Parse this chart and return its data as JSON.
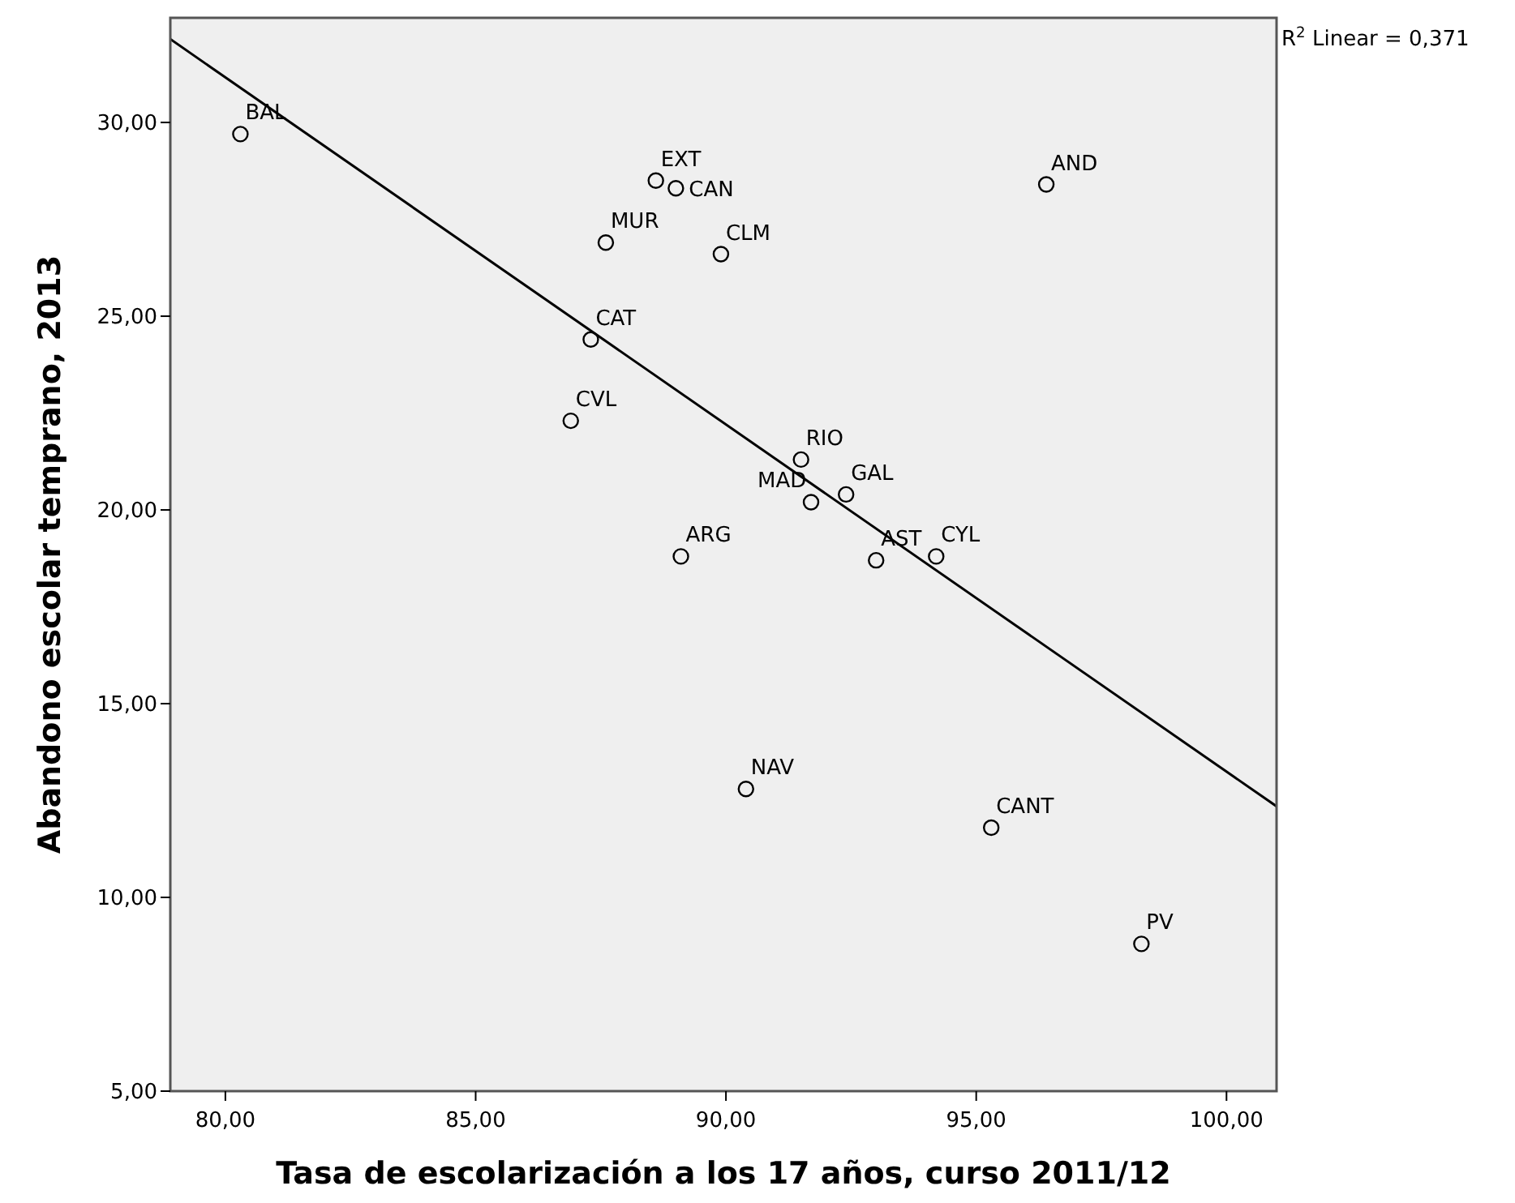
{
  "chart_data": {
    "type": "scatter",
    "xlabel": "Tasa de escolarización a los 17 años, curso 2011/12",
    "ylabel": "Abandono escolar temprano, 2013",
    "xlim": [
      78.9,
      101.0
    ],
    "ylim": [
      5,
      32.7
    ],
    "xticks": [
      {
        "value": 80,
        "label": "80,00"
      },
      {
        "value": 85,
        "label": "85,00"
      },
      {
        "value": 90,
        "label": "90,00"
      },
      {
        "value": 95,
        "label": "95,00"
      },
      {
        "value": 100,
        "label": "100,00"
      }
    ],
    "yticks": [
      {
        "value": 5,
        "label": "5,00"
      },
      {
        "value": 10,
        "label": "10,00"
      },
      {
        "value": 15,
        "label": "15,00"
      },
      {
        "value": 20,
        "label": "20,00"
      },
      {
        "value": 25,
        "label": "25,00"
      },
      {
        "value": 30,
        "label": "30,00"
      }
    ],
    "grid": false,
    "marker": "circle",
    "series": [
      {
        "color": "#000000",
        "x": [
          80.3,
          88.6,
          89.0,
          87.6,
          89.9,
          87.3,
          86.9,
          91.5,
          92.4,
          91.7,
          89.1,
          93.0,
          94.2,
          96.4,
          90.4,
          95.3,
          98.3
        ],
        "values": [
          29.7,
          28.5,
          28.3,
          26.9,
          26.6,
          24.4,
          22.3,
          21.3,
          20.4,
          20.2,
          18.8,
          18.7,
          18.8,
          28.4,
          12.8,
          11.8,
          8.8
        ]
      },
      {
        "type": "line",
        "marker": "none",
        "color": "#000000",
        "x": [
          78.9,
          101.0
        ],
        "values": [
          32.15,
          12.35
        ]
      }
    ],
    "annotations": [
      {
        "text": "BAL",
        "x": 80.3,
        "y": 29.7
      },
      {
        "text": "EXT",
        "x": 88.6,
        "y": 28.5
      },
      {
        "text": "CAN",
        "x": 89.0,
        "y": 28.3
      },
      {
        "text": "MUR",
        "x": 87.6,
        "y": 26.9
      },
      {
        "text": "CLM",
        "x": 89.9,
        "y": 26.6
      },
      {
        "text": "CAT",
        "x": 87.3,
        "y": 24.4
      },
      {
        "text": "CVL",
        "x": 86.9,
        "y": 22.3
      },
      {
        "text": "RIO",
        "x": 91.5,
        "y": 21.3
      },
      {
        "text": "GAL",
        "x": 92.4,
        "y": 20.4
      },
      {
        "text": "MAD",
        "x": 91.7,
        "y": 20.2
      },
      {
        "text": "ARG",
        "x": 89.1,
        "y": 18.8
      },
      {
        "text": "AST",
        "x": 93.0,
        "y": 18.7
      },
      {
        "text": "CYL",
        "x": 94.2,
        "y": 18.8
      },
      {
        "text": "AND",
        "x": 96.4,
        "y": 28.4
      },
      {
        "text": "NAV",
        "x": 90.4,
        "y": 12.8
      },
      {
        "text": "CANT",
        "x": 95.3,
        "y": 11.8
      },
      {
        "text": "PV",
        "x": 98.3,
        "y": 8.8
      },
      "R$^{2}$ Linear = 0,371"
    ]
  }
}
